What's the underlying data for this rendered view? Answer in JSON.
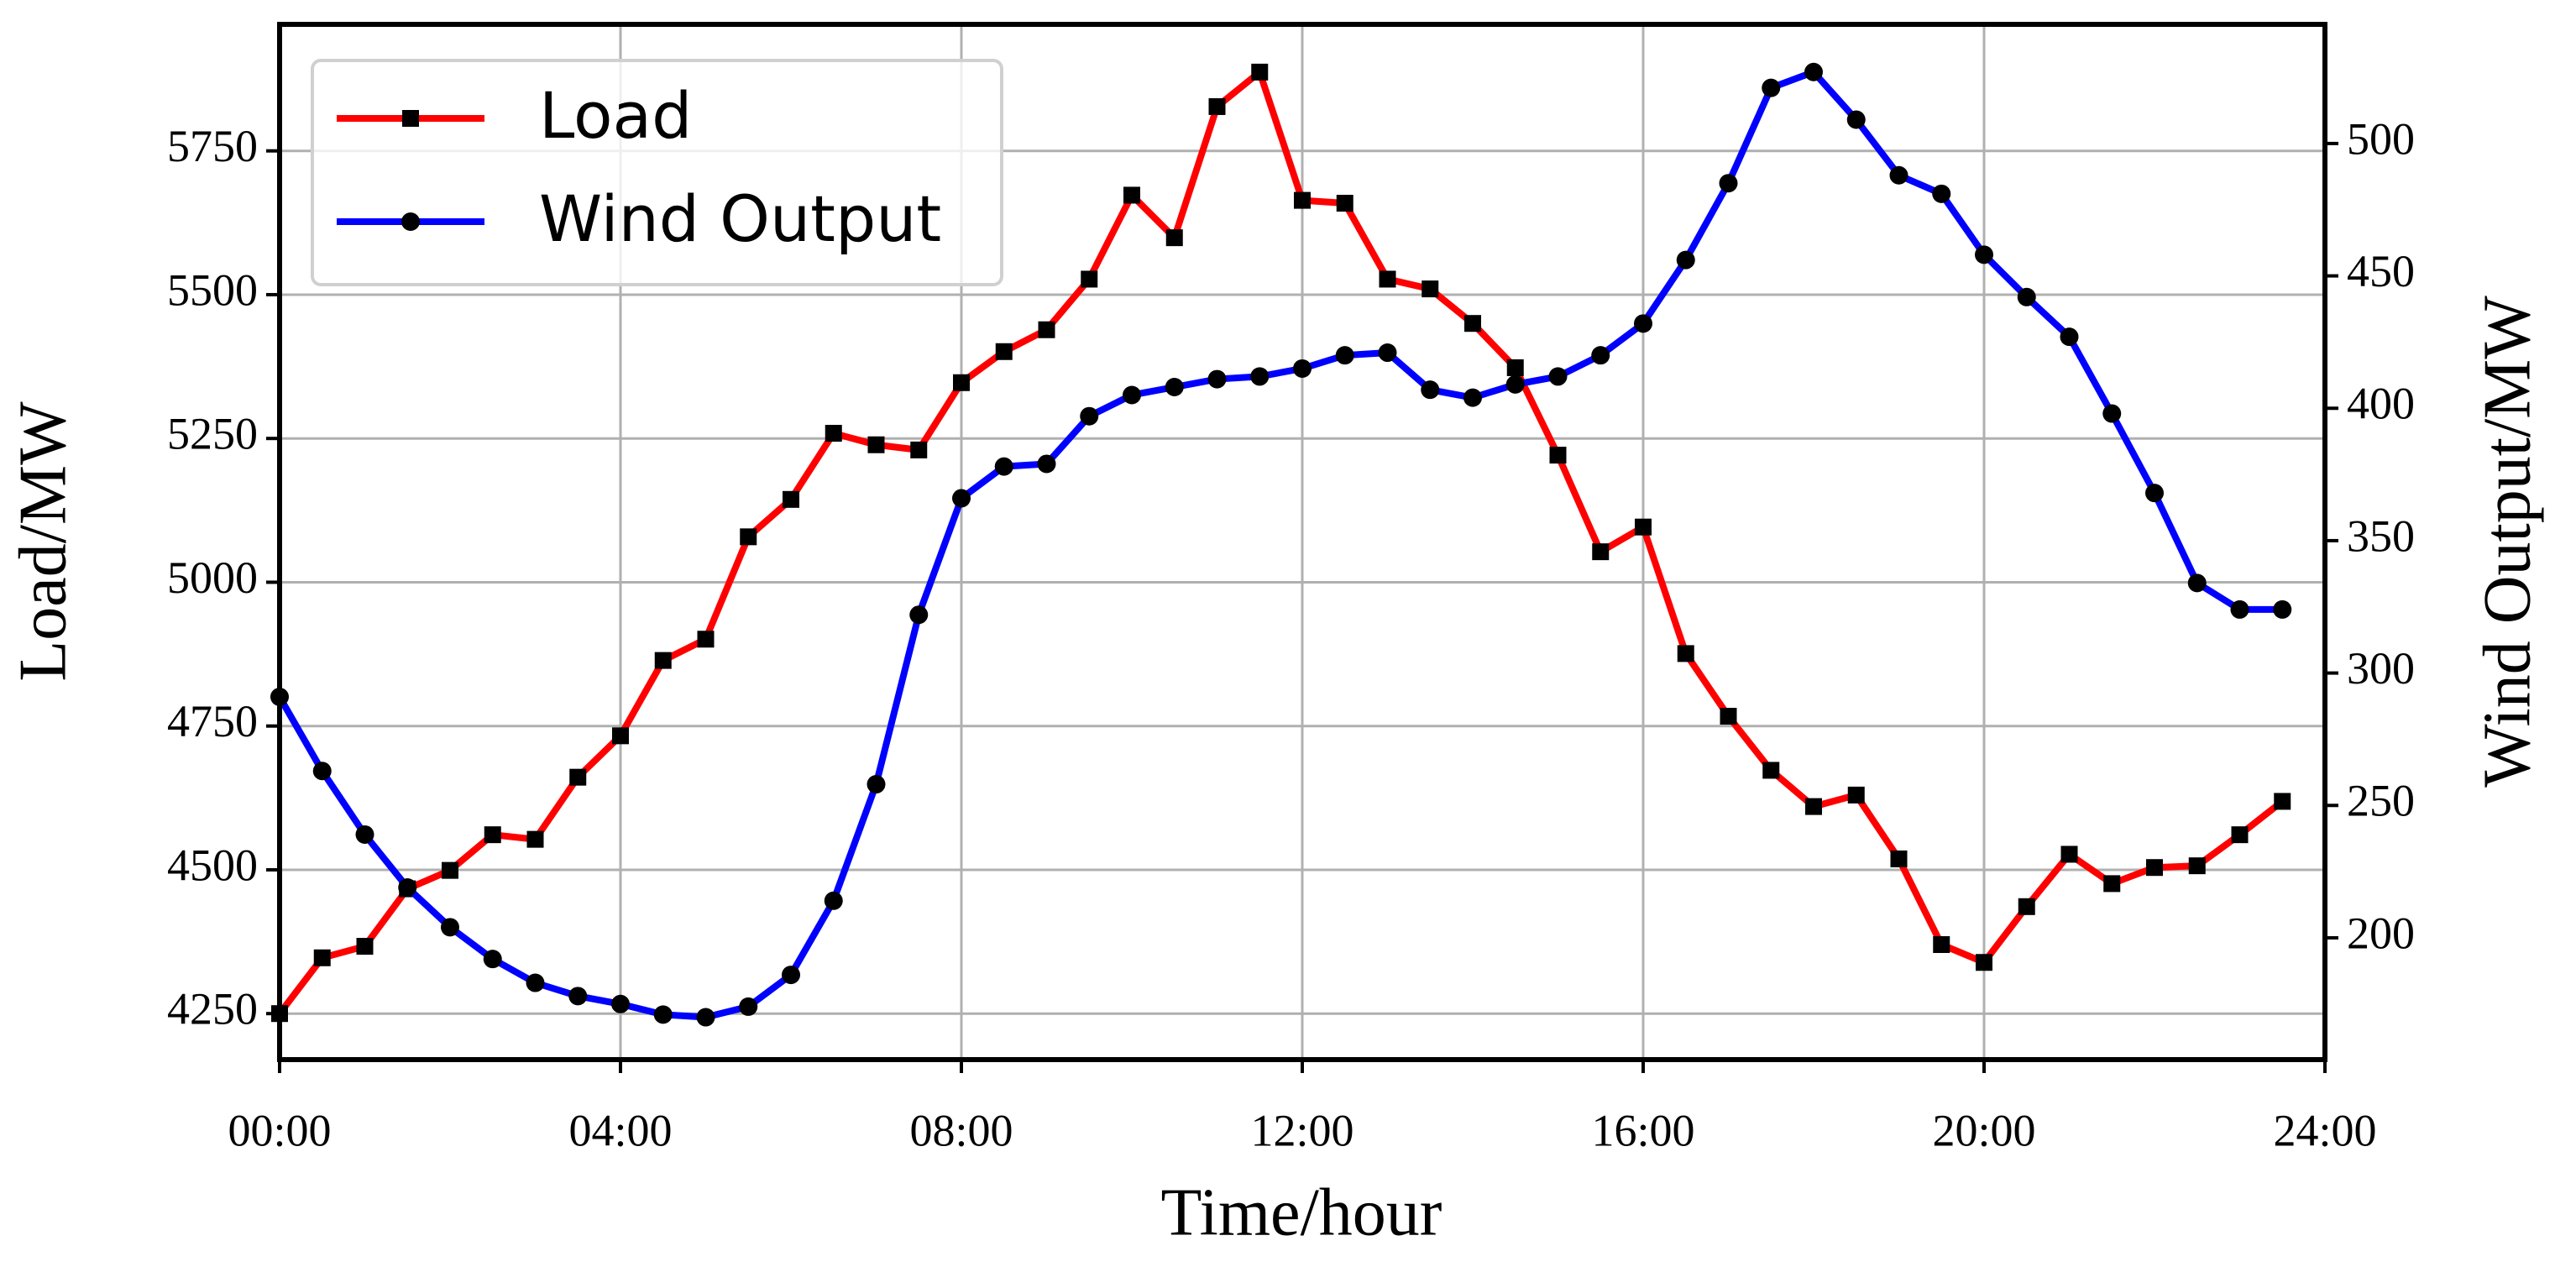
{
  "chart_data": {
    "type": "line",
    "xlabel": "Time/hour",
    "ylabel": "Load/MW",
    "y2label": "Wind Output/MW",
    "x": [
      0,
      0.5,
      1,
      1.5,
      2,
      2.5,
      3,
      3.5,
      4,
      4.5,
      5,
      5.5,
      6,
      6.5,
      7,
      7.5,
      8,
      8.5,
      9,
      9.5,
      10,
      10.5,
      11,
      11.5,
      12,
      12.5,
      13,
      13.5,
      14,
      14.5,
      15,
      15.5,
      16,
      16.5,
      17,
      17.5,
      18,
      18.5,
      19,
      19.5,
      20,
      20.5,
      21,
      21.5,
      22,
      22.5,
      23,
      23.5
    ],
    "series": [
      {
        "name": "Load",
        "color": "#ff0000",
        "marker": "square",
        "axis": "y",
        "values": [
          4250,
          4347,
          4367,
          4467,
          4499,
          4561,
          4553,
          4661,
          4733,
          4864,
          4901,
          5079,
          5144,
          5259,
          5239,
          5230,
          5347,
          5401,
          5439,
          5527,
          5673,
          5599,
          5827,
          5887,
          5664,
          5659,
          5527,
          5510,
          5450,
          5373,
          5221,
          5053,
          5096,
          4876,
          4767,
          4673,
          4610,
          4630,
          4519,
          4370,
          4339,
          4436,
          4527,
          4476,
          4504,
          4507,
          4561,
          4619
        ]
      },
      {
        "name": "Wind Output",
        "color": "#0000ff",
        "marker": "circle",
        "axis": "y2",
        "values": [
          291,
          263,
          239,
          219,
          204,
          192,
          183,
          178,
          175,
          171,
          170,
          174,
          186,
          214,
          258,
          322,
          366,
          378,
          379,
          397,
          405,
          408,
          411,
          412,
          415,
          420,
          421,
          407,
          404,
          409,
          412,
          420,
          432,
          456,
          485,
          521,
          527,
          509,
          488,
          481,
          458,
          442,
          427,
          398,
          368,
          334,
          324,
          324
        ]
      }
    ],
    "xlim": [
      0,
      24
    ],
    "xticks": [
      {
        "value": 0,
        "label": "00:00"
      },
      {
        "value": 4,
        "label": "04:00"
      },
      {
        "value": 8,
        "label": "08:00"
      },
      {
        "value": 12,
        "label": "12:00"
      },
      {
        "value": 16,
        "label": "16:00"
      },
      {
        "value": 20,
        "label": "20:00"
      },
      {
        "value": 24,
        "label": "24:00"
      }
    ],
    "ylim": [
      4170,
      5970
    ],
    "yticks": [
      4250,
      4500,
      4750,
      5000,
      5250,
      5500,
      5750
    ],
    "y2lim": [
      154,
      545
    ],
    "y2ticks": [
      200,
      250,
      300,
      350,
      400,
      450,
      500
    ],
    "grid": true,
    "legend": "upper left"
  }
}
